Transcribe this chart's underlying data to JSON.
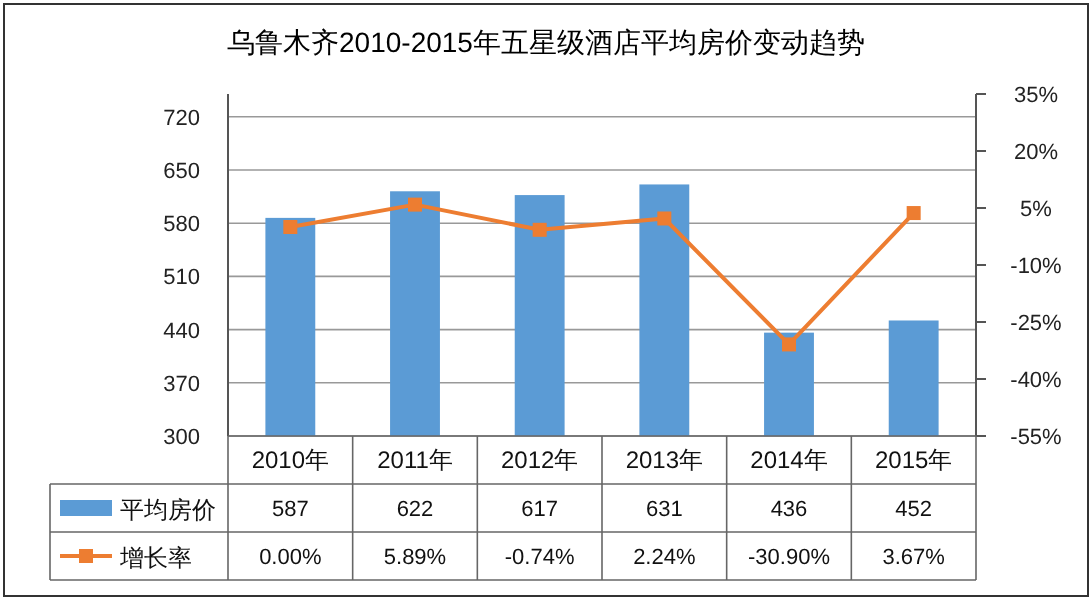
{
  "chart_data": {
    "type": "bar",
    "title": "乌鲁木齐2010-2015年五星级酒店平均房价变动趋势",
    "categories": [
      "2010年",
      "2011年",
      "2012年",
      "2013年",
      "2014年",
      "2015年"
    ],
    "series": [
      {
        "name": "平均房价",
        "color": "#5b9bd5",
        "values": [
          587,
          622,
          617,
          631,
          436,
          452
        ]
      },
      {
        "name": "增长率",
        "type": "line",
        "axis": "y2",
        "color": "#ed7d31",
        "marker": "square",
        "values": [
          0.0,
          5.89,
          -0.74,
          2.24,
          -30.9,
          3.67
        ],
        "value_labels": [
          "0.00%",
          "5.89%",
          "-0.74%",
          "2.24%",
          "-30.90%",
          "3.67%"
        ]
      }
    ],
    "ylim": [
      300,
      750
    ],
    "yticks": [
      300,
      370,
      440,
      510,
      580,
      650,
      720
    ],
    "y2lim": [
      -55,
      35
    ],
    "y2ticks": [
      {
        "value": -55,
        "label": "-55%"
      },
      {
        "value": -40,
        "label": "-40%"
      },
      {
        "value": -25,
        "label": "-25%"
      },
      {
        "value": -10,
        "label": "-10%"
      },
      {
        "value": 5,
        "label": "5%"
      },
      {
        "value": 20,
        "label": "20%"
      },
      {
        "value": 35,
        "label": "35%"
      }
    ],
    "grid": "y",
    "legend": "bottom",
    "data_labels": true
  }
}
